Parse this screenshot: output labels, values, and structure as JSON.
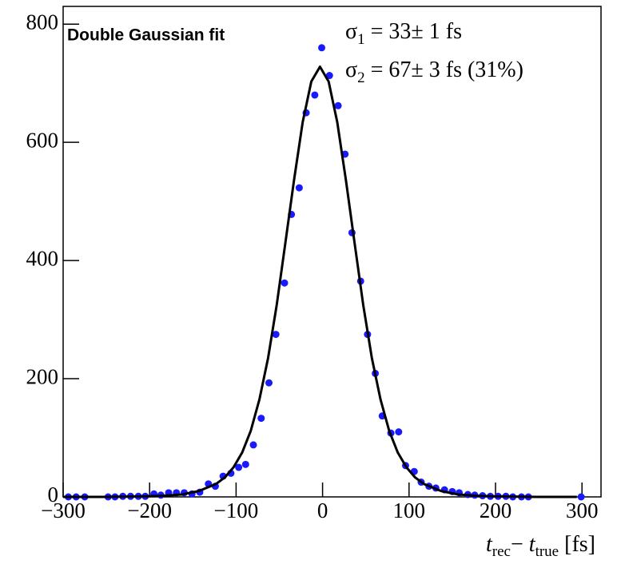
{
  "chart_data": {
    "type": "scatter",
    "title": "Double Gaussian fit",
    "annotations": [
      [
        "σ",
        "1",
        " = 33± 1 fs"
      ],
      [
        "σ",
        "2",
        " = 67± 3 fs (31%)"
      ]
    ],
    "xlabel": [
      "t",
      "rec",
      "− ",
      "t",
      "true",
      " [fs]"
    ],
    "xlim": [
      -300,
      322
    ],
    "ylim": [
      0,
      830
    ],
    "xticks": [
      {
        "value": -300,
        "label": "−300"
      },
      {
        "value": -200,
        "label": "−200"
      },
      {
        "value": -100,
        "label": "−100"
      },
      0,
      100,
      200,
      300
    ],
    "yticks": [
      0,
      200,
      400,
      600,
      800
    ],
    "series": [
      {
        "color": "#1a1aff",
        "x": [
          -294,
          -285,
          -275,
          -248,
          -240,
          -231,
          -222,
          -213,
          -205,
          -195,
          -187,
          -178,
          -169,
          -160,
          -151,
          -142,
          -132,
          -124,
          -115,
          -106,
          -97,
          -89,
          -80,
          -71,
          -62,
          -54,
          -44,
          -36,
          -27,
          -19,
          -9,
          -1,
          8,
          18,
          26,
          34,
          44,
          52,
          61,
          69,
          79,
          88,
          96,
          106,
          114,
          123,
          131,
          141,
          150,
          158,
          168,
          176,
          185,
          194,
          203,
          212,
          220,
          230,
          238,
          299
        ],
        "values": [
          0,
          0,
          0,
          0,
          0,
          1,
          1,
          1,
          1,
          5,
          3,
          7,
          7,
          7,
          5,
          8,
          22,
          18,
          35,
          40,
          50,
          55,
          88,
          133,
          193,
          275,
          362,
          478,
          523,
          650,
          680,
          760,
          713,
          662,
          580,
          447,
          365,
          275,
          209,
          137,
          108,
          110,
          53,
          43,
          25,
          18,
          15,
          12,
          9,
          7,
          4,
          3,
          2,
          1,
          1,
          1,
          0,
          0,
          0,
          0
        ]
      },
      {
        "color": "#000000",
        "line": true,
        "x": [
          -300,
          -253,
          -203,
          -183,
          -163,
          -143,
          -123,
          -113,
          -103,
          -93,
          -83,
          -73,
          -63,
          -53,
          -43,
          -33,
          -23,
          -13,
          -3,
          7,
          17,
          27,
          37,
          47,
          57,
          67,
          77,
          87,
          97,
          107,
          117,
          137,
          157,
          177,
          197,
          247,
          294
        ],
        "values": [
          0,
          0,
          1,
          2,
          4,
          10,
          22,
          33,
          50,
          75,
          112,
          165,
          235,
          325,
          430,
          536,
          634,
          703,
          728,
          703,
          634,
          536,
          430,
          325,
          235,
          165,
          112,
          75,
          50,
          33,
          22,
          10,
          4,
          2,
          1,
          0,
          0
        ]
      }
    ]
  }
}
